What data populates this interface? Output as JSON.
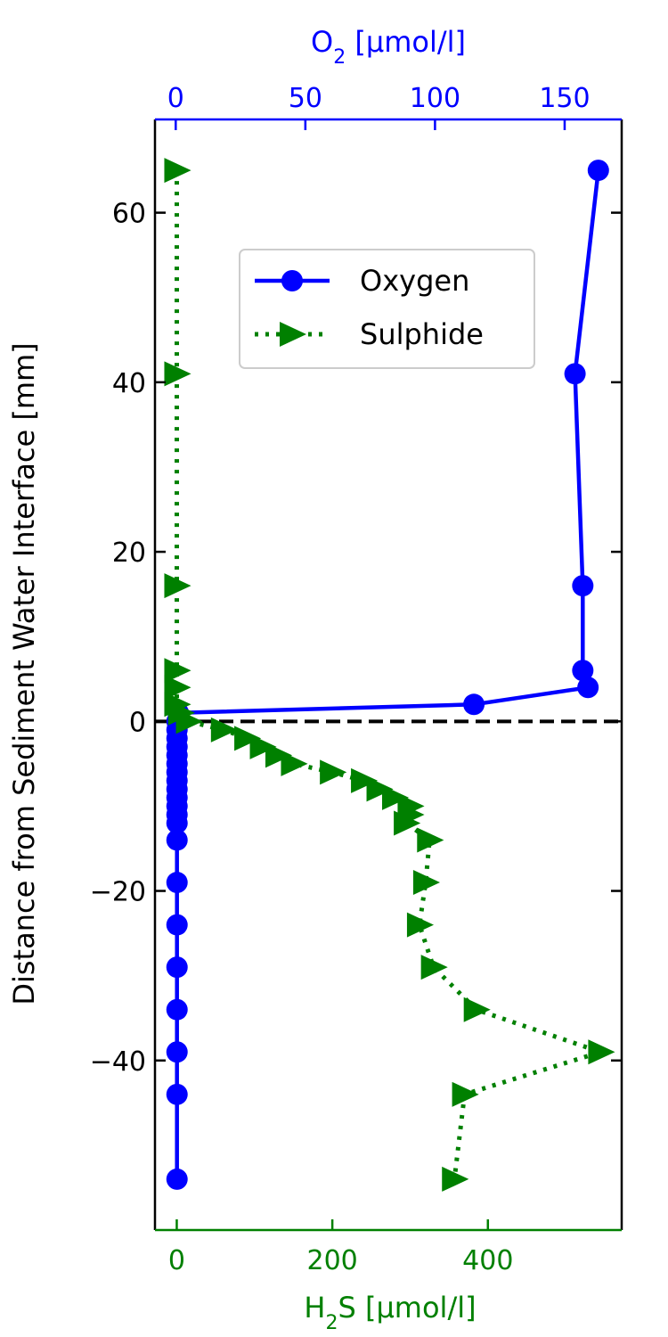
{
  "chart_data": {
    "type": "line",
    "y_axis": {
      "label": "Distance from Sediment Water Interface [mm]",
      "ylim": [
        -60,
        71
      ],
      "ticks": [
        -40,
        -20,
        0,
        20,
        40,
        60
      ],
      "tick_labels": [
        "−40",
        "−20",
        "0",
        "20",
        "40",
        "60"
      ]
    },
    "top_x_axis": {
      "label_main": "O",
      "label_sub": "2",
      "label_rest": " [µmol/l]",
      "color": "#0000ff",
      "xlim": [
        -8,
        172
      ],
      "ticks": [
        0,
        50,
        100,
        150
      ],
      "tick_labels": [
        "0",
        "50",
        "100",
        "150"
      ]
    },
    "bottom_x_axis": {
      "label_main": "H",
      "label_sub": "2",
      "label_rest": "S [µmol/l]",
      "color": "#008000",
      "xlim": [
        -28,
        572
      ],
      "ticks": [
        0,
        200,
        400
      ],
      "tick_labels": [
        "0",
        "200",
        "400"
      ]
    },
    "reference_line": {
      "y": 0,
      "style": "dashed",
      "color": "#000000"
    },
    "legend": {
      "position": "upper-center",
      "entries": [
        "Oxygen",
        "Sulphide"
      ]
    },
    "series": [
      {
        "name": "Oxygen",
        "axis": "top",
        "color": "#0000ff",
        "marker": "circle",
        "line_style": "solid",
        "points": [
          {
            "x": 163,
            "y": 65
          },
          {
            "x": 154,
            "y": 41
          },
          {
            "x": 157,
            "y": 16
          },
          {
            "x": 157,
            "y": 6
          },
          {
            "x": 159,
            "y": 4
          },
          {
            "x": 115,
            "y": 2
          },
          {
            "x": 1,
            "y": 1
          },
          {
            "x": 0.5,
            "y": 0
          },
          {
            "x": 0.5,
            "y": -1
          },
          {
            "x": 0.5,
            "y": -2
          },
          {
            "x": 0.5,
            "y": -3
          },
          {
            "x": 0.5,
            "y": -4
          },
          {
            "x": 0.5,
            "y": -5
          },
          {
            "x": 0.5,
            "y": -6
          },
          {
            "x": 0.5,
            "y": -7
          },
          {
            "x": 0.5,
            "y": -8
          },
          {
            "x": 0.5,
            "y": -9
          },
          {
            "x": 0.5,
            "y": -10
          },
          {
            "x": 0.5,
            "y": -11
          },
          {
            "x": 0.5,
            "y": -12
          },
          {
            "x": 0.5,
            "y": -14
          },
          {
            "x": 0.5,
            "y": -19
          },
          {
            "x": 0.5,
            "y": -24
          },
          {
            "x": 0.5,
            "y": -29
          },
          {
            "x": 0.5,
            "y": -34
          },
          {
            "x": 0.5,
            "y": -39
          },
          {
            "x": 0.5,
            "y": -44
          },
          {
            "x": 0.5,
            "y": -54
          }
        ]
      },
      {
        "name": "Sulphide",
        "axis": "bottom",
        "color": "#008000",
        "marker": "triangle-right",
        "line_style": "dotted",
        "points": [
          {
            "x": 0,
            "y": 65
          },
          {
            "x": 0,
            "y": 41
          },
          {
            "x": 0,
            "y": 16
          },
          {
            "x": 0,
            "y": 6
          },
          {
            "x": 0,
            "y": 4
          },
          {
            "x": 0,
            "y": 2
          },
          {
            "x": 5,
            "y": 1
          },
          {
            "x": 15,
            "y": 0
          },
          {
            "x": 60,
            "y": -1
          },
          {
            "x": 90,
            "y": -2
          },
          {
            "x": 110,
            "y": -3
          },
          {
            "x": 130,
            "y": -4
          },
          {
            "x": 150,
            "y": -5
          },
          {
            "x": 200,
            "y": -6
          },
          {
            "x": 240,
            "y": -7
          },
          {
            "x": 260,
            "y": -8
          },
          {
            "x": 280,
            "y": -9
          },
          {
            "x": 300,
            "y": -10
          },
          {
            "x": 300,
            "y": -11
          },
          {
            "x": 295,
            "y": -12
          },
          {
            "x": 325,
            "y": -14
          },
          {
            "x": 320,
            "y": -19
          },
          {
            "x": 312,
            "y": -24
          },
          {
            "x": 330,
            "y": -29
          },
          {
            "x": 385,
            "y": -34
          },
          {
            "x": 545,
            "y": -39
          },
          {
            "x": 370,
            "y": -44
          },
          {
            "x": 357,
            "y": -54
          }
        ]
      }
    ]
  }
}
